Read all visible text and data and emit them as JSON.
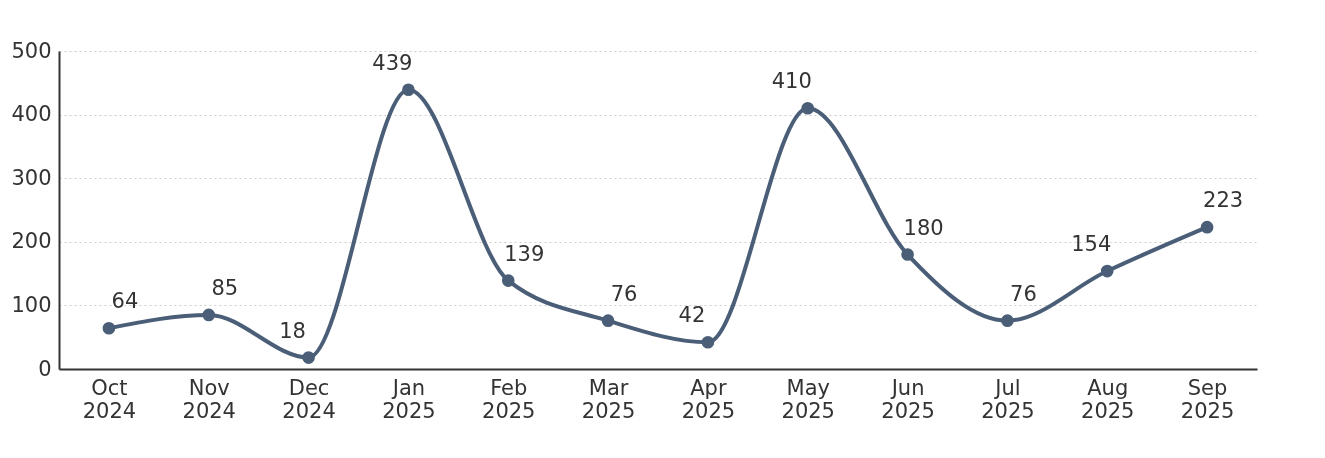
{
  "chart_data": {
    "type": "line",
    "categories": [
      "Oct 2024",
      "Nov 2024",
      "Dec 2024",
      "Jan 2025",
      "Feb 2025",
      "Mar 2025",
      "Apr 2025",
      "May 2025",
      "Jun 2025",
      "Jul 2025",
      "Aug 2025",
      "Sep 2025"
    ],
    "series": [
      {
        "color": "#4b5e78",
        "values": [
          64,
          85,
          18,
          439,
          139,
          76,
          42,
          410,
          180,
          76,
          154,
          223
        ]
      }
    ],
    "ylim": [
      0,
      500
    ],
    "yticks": [
      0,
      100,
      200,
      300,
      400,
      500
    ],
    "grid": "y",
    "marker": "circle",
    "line_style": "solid",
    "data_labels": true,
    "legend": false
  }
}
